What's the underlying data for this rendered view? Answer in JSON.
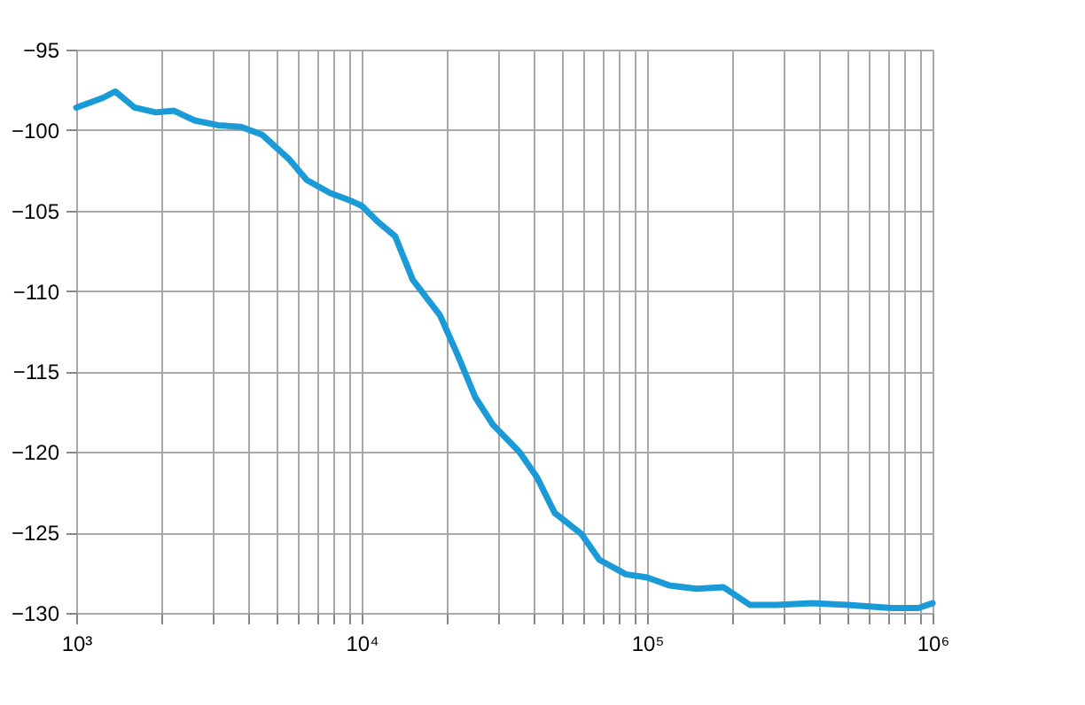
{
  "chart_data": {
    "type": "line",
    "x": [
      1000,
      1240,
      1370,
      1600,
      1900,
      2200,
      2600,
      3140,
      3780,
      4490,
      5560,
      6420,
      7730,
      9180,
      10000,
      11400,
      13100,
      15100,
      18800,
      21600,
      25000,
      28800,
      35700,
      41200,
      47500,
      58900,
      68000,
      84200,
      100000,
      120000,
      149000,
      185000,
      229000,
      284000,
      378000,
      504000,
      719000,
      891000,
      1000000
    ],
    "series": [
      {
        "color": "#1a9ad6",
        "values": [
          -98.6,
          -98.0,
          -97.6,
          -98.6,
          -98.9,
          -98.8,
          -99.4,
          -99.7,
          -99.8,
          -100.3,
          -101.8,
          -103.1,
          -103.9,
          -104.4,
          -104.7,
          -105.7,
          -106.6,
          -109.3,
          -111.5,
          -113.9,
          -116.6,
          -118.3,
          -120.0,
          -121.6,
          -123.8,
          -125.1,
          -126.7,
          -127.6,
          -127.8,
          -128.3,
          -128.5,
          -128.4,
          -129.5,
          -129.5,
          -129.4,
          -129.5,
          -129.7,
          -129.7,
          -129.4
        ]
      }
    ],
    "log": "x",
    "xlim": [
      1000,
      1000000
    ],
    "xticks": [
      {
        "value": 1000,
        "label": "10³"
      },
      {
        "value": 2000,
        "label": null
      },
      {
        "value": 3000,
        "label": null
      },
      {
        "value": 4000,
        "label": null
      },
      {
        "value": 5000,
        "label": null
      },
      {
        "value": 6000,
        "label": null
      },
      {
        "value": 7000,
        "label": null
      },
      {
        "value": 8000,
        "label": null
      },
      {
        "value": 9000,
        "label": null
      },
      {
        "value": 10000,
        "label": "10⁴"
      },
      {
        "value": 20000,
        "label": null
      },
      {
        "value": 30000,
        "label": null
      },
      {
        "value": 40000,
        "label": null
      },
      {
        "value": 50000,
        "label": null
      },
      {
        "value": 60000,
        "label": null
      },
      {
        "value": 70000,
        "label": null
      },
      {
        "value": 80000,
        "label": null
      },
      {
        "value": 90000,
        "label": null
      },
      {
        "value": 100000,
        "label": "10⁵"
      },
      {
        "value": 200000,
        "label": null
      },
      {
        "value": 300000,
        "label": null
      },
      {
        "value": 400000,
        "label": null
      },
      {
        "value": 500000,
        "label": null
      },
      {
        "value": 600000,
        "label": null
      },
      {
        "value": 700000,
        "label": null
      },
      {
        "value": 800000,
        "label": null
      },
      {
        "value": 900000,
        "label": null
      },
      {
        "value": 1000000,
        "label": "10⁶"
      }
    ],
    "ylim": [
      -130,
      -95
    ],
    "yticks": [
      -130,
      -125,
      -120,
      -115,
      -110,
      -105,
      -100,
      -95
    ],
    "grid": true,
    "line_style": "solid",
    "marker": "none"
  }
}
